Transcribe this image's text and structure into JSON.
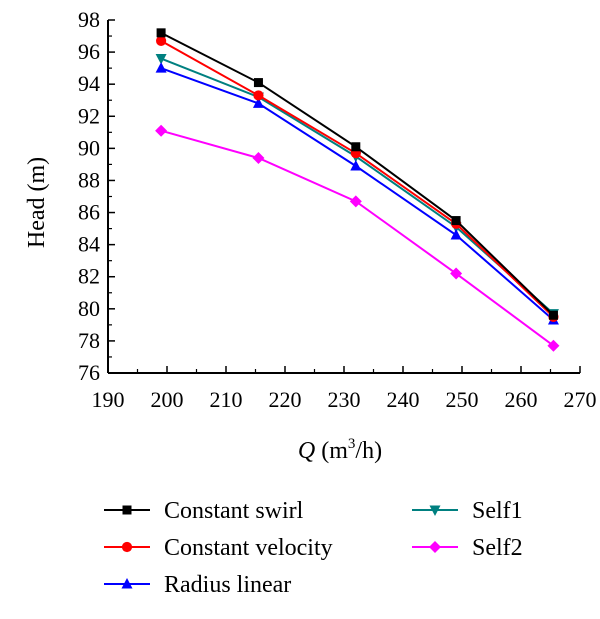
{
  "chart_data": {
    "type": "line",
    "title": "",
    "xlabel": {
      "var": "Q",
      "unit_open": "(m",
      "unit_sup": "3",
      "unit_close": "/h)"
    },
    "ylabel": "Head (m)",
    "xlim": [
      190,
      270
    ],
    "ylim": [
      76,
      98
    ],
    "x_ticks": [
      190,
      200,
      210,
      220,
      230,
      240,
      250,
      260,
      270
    ],
    "y_ticks": [
      76,
      78,
      80,
      82,
      84,
      86,
      88,
      90,
      92,
      94,
      96,
      98
    ],
    "grid": false,
    "legend_position": "bottom",
    "x": [
      199,
      215.5,
      232,
      249,
      265.5
    ],
    "series": [
      {
        "name": "Constant swirl",
        "marker": "square",
        "color": "#000000",
        "values": [
          97.2,
          94.1,
          90.1,
          85.5,
          79.6
        ]
      },
      {
        "name": "Constant velocity",
        "marker": "circle",
        "color": "#ff0000",
        "values": [
          96.7,
          93.3,
          89.7,
          85.3,
          79.5
        ]
      },
      {
        "name": "Radius linear",
        "marker": "triangle-up",
        "color": "#0000ff",
        "values": [
          95.0,
          92.8,
          88.9,
          84.6,
          79.3
        ]
      },
      {
        "name": "Self1",
        "marker": "triangle-down",
        "color": "#008080",
        "values": [
          95.6,
          93.2,
          89.5,
          85.1,
          79.7
        ]
      },
      {
        "name": "Self2",
        "marker": "diamond",
        "color": "#ff00ff",
        "values": [
          91.1,
          89.4,
          86.7,
          82.2,
          77.7
        ]
      }
    ]
  }
}
